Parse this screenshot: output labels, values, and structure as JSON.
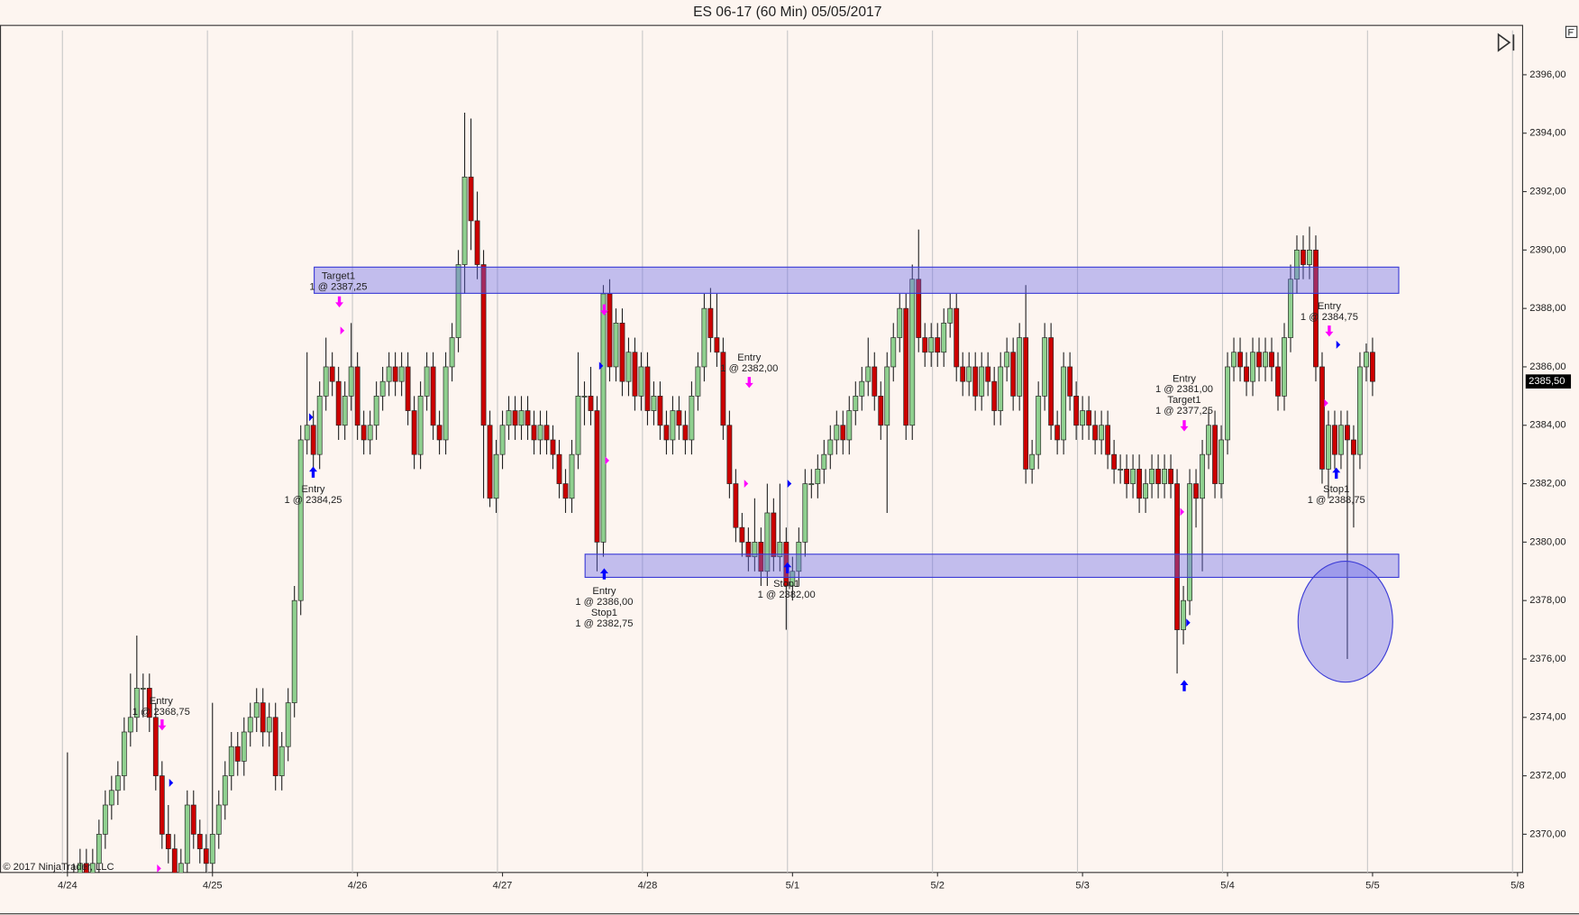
{
  "chart_data": {
    "type": "candlestick",
    "title": "ES 06-17 (60 Min)  05/05/2017",
    "copyright": "© 2017 NinjaTrader, LLC",
    "up_color": "#8fd08f",
    "down_color": "#cc0000",
    "outline_color": "#222222",
    "marker_colors": {
      "buy": "#0000ff",
      "sell": "#ff00ff"
    },
    "xlim": [
      -10.7,
      230.8
    ],
    "xticks": [
      {
        "value": 0,
        "label": "4/24"
      },
      {
        "value": 23,
        "label": "4/25"
      },
      {
        "value": 46,
        "label": "4/26"
      },
      {
        "value": 69,
        "label": "4/27"
      },
      {
        "value": 92,
        "label": "4/28"
      },
      {
        "value": 115,
        "label": "5/1"
      },
      {
        "value": 138,
        "label": "5/2"
      },
      {
        "value": 161,
        "label": "5/3"
      },
      {
        "value": 184,
        "label": "5/4"
      },
      {
        "value": 207,
        "label": "5/5"
      },
      {
        "value": 230,
        "label": "5/8"
      }
    ],
    "ylim": [
      2368.69,
      2397.69
    ],
    "yticks": [
      {
        "value": 2370,
        "label": "2370,00"
      },
      {
        "value": 2372,
        "label": "2372,00"
      },
      {
        "value": 2374,
        "label": "2374,00"
      },
      {
        "value": 2376,
        "label": "2376,00"
      },
      {
        "value": 2378,
        "label": "2378,00"
      },
      {
        "value": 2380,
        "label": "2380,00"
      },
      {
        "value": 2382,
        "label": "2382,00"
      },
      {
        "value": 2384,
        "label": "2384,00"
      },
      {
        "value": 2386,
        "label": "2386,00"
      },
      {
        "value": 2388,
        "label": "2388,00"
      },
      {
        "value": 2390,
        "label": "2390,00"
      },
      {
        "value": 2392,
        "label": "2392,00"
      },
      {
        "value": 2394,
        "label": "2394,00"
      },
      {
        "value": 2396,
        "label": "2396,00"
      }
    ],
    "last_price": {
      "value": 2385.5,
      "label": "2385,50"
    },
    "annotations": [
      [
        "Target1",
        "1 @ 2387,25"
      ],
      [
        "Entry",
        "1 @ 2384,25"
      ],
      [
        "Entry",
        "1 @ 2368,75"
      ],
      [
        "Entry",
        "1 @ 2386,00",
        "Stop1",
        "1 @ 2382,75"
      ],
      [
        "Entry",
        "1 @ 2382,00"
      ],
      [
        "Stop1",
        "1 @ 2382,00"
      ],
      [
        "Entry",
        "1 @ 2381,00",
        "Target1",
        "1 @ 2377,25"
      ],
      [
        "Entry",
        "1 @ 2384,75"
      ],
      [
        "Stop1",
        "1 @ 2388,75"
      ]
    ],
    "ohlc": [
      [
        2367.5,
        2372.8,
        2367,
        2368
      ],
      [
        2368,
        2369,
        2367.5,
        2368.5
      ],
      [
        2368.5,
        2369.5,
        2368,
        2369
      ],
      [
        2369,
        2369.5,
        2368,
        2368.5
      ],
      [
        2368.5,
        2369.5,
        2368,
        2369
      ],
      [
        2369,
        2370.5,
        2368.5,
        2370
      ],
      [
        2370,
        2371.5,
        2369.5,
        2371
      ],
      [
        2371,
        2372,
        2370.5,
        2371.5
      ],
      [
        2371.5,
        2372.5,
        2371,
        2372
      ],
      [
        2372,
        2374,
        2371.5,
        2373.5
      ],
      [
        2373.5,
        2375.5,
        2373,
        2374
      ],
      [
        2374,
        2376.8,
        2373.5,
        2375
      ],
      [
        2375,
        2375.5,
        2374,
        2375
      ],
      [
        2375,
        2375.5,
        2373.5,
        2374
      ],
      [
        2374,
        2374.5,
        2371.5,
        2372
      ],
      [
        2372,
        2372.5,
        2369.5,
        2370
      ],
      [
        2370,
        2371,
        2369,
        2369.5
      ],
      [
        2369.5,
        2370,
        2368,
        2368.5
      ],
      [
        2368.5,
        2369.5,
        2368,
        2369
      ],
      [
        2369,
        2371.5,
        2368.5,
        2371
      ],
      [
        2371,
        2371.5,
        2369.5,
        2370
      ],
      [
        2370,
        2370.5,
        2369,
        2369.5
      ],
      [
        2369.5,
        2370,
        2368.5,
        2369
      ],
      [
        2369,
        2374.5,
        2368.5,
        2370
      ],
      [
        2370,
        2371.5,
        2369.5,
        2371
      ],
      [
        2371,
        2372.5,
        2370.5,
        2372
      ],
      [
        2372,
        2373.5,
        2371.5,
        2373
      ],
      [
        2373,
        2373.5,
        2372,
        2372.5
      ],
      [
        2372.5,
        2374,
        2372,
        2373.5
      ],
      [
        2373.5,
        2374.5,
        2373,
        2374
      ],
      [
        2374,
        2375,
        2373.5,
        2374.5
      ],
      [
        2374.5,
        2375,
        2373,
        2373.5
      ],
      [
        2373.5,
        2374.5,
        2373,
        2374
      ],
      [
        2374,
        2374.5,
        2371.5,
        2372
      ],
      [
        2372,
        2373.5,
        2371.5,
        2373
      ],
      [
        2373,
        2375,
        2372.5,
        2374.5
      ],
      [
        2374.5,
        2378.5,
        2374,
        2378
      ],
      [
        2378,
        2384,
        2377.5,
        2383.5
      ],
      [
        2383.5,
        2386.5,
        2383,
        2384
      ],
      [
        2384,
        2384.5,
        2382.5,
        2383
      ],
      [
        2383,
        2385.5,
        2382.5,
        2385
      ],
      [
        2385,
        2387,
        2384.5,
        2386
      ],
      [
        2386,
        2386.5,
        2385,
        2385.5
      ],
      [
        2385.5,
        2386,
        2383.5,
        2384
      ],
      [
        2384,
        2385.5,
        2383.5,
        2385
      ],
      [
        2385,
        2387.5,
        2384.5,
        2386
      ],
      [
        2386,
        2386.5,
        2383.5,
        2384
      ],
      [
        2384,
        2384.5,
        2383,
        2383.5
      ],
      [
        2383.5,
        2384.5,
        2383,
        2384
      ],
      [
        2384,
        2385.5,
        2383.5,
        2385
      ],
      [
        2385,
        2386,
        2384.5,
        2385.5
      ],
      [
        2385.5,
        2386.5,
        2385,
        2386
      ],
      [
        2386,
        2386.5,
        2385,
        2385.5
      ],
      [
        2385.5,
        2386.5,
        2385,
        2386
      ],
      [
        2386,
        2386.5,
        2384,
        2384.5
      ],
      [
        2384.5,
        2385,
        2382.5,
        2383
      ],
      [
        2383,
        2385.5,
        2382.5,
        2385
      ],
      [
        2385,
        2386.5,
        2384.5,
        2386
      ],
      [
        2386,
        2386.5,
        2383.5,
        2384
      ],
      [
        2384,
        2384.5,
        2383,
        2383.5
      ],
      [
        2383.5,
        2386.5,
        2383,
        2386
      ],
      [
        2386,
        2387.5,
        2385.5,
        2387
      ],
      [
        2387,
        2390,
        2386.5,
        2389.5
      ],
      [
        2389.5,
        2394.7,
        2388.5,
        2392.5
      ],
      [
        2392.5,
        2394.5,
        2390,
        2391
      ],
      [
        2391,
        2392,
        2389,
        2389.5
      ],
      [
        2389.5,
        2390,
        2381.5,
        2384
      ],
      [
        2384,
        2384.5,
        2381.2,
        2381.5
      ],
      [
        2381.5,
        2383.5,
        2381,
        2383
      ],
      [
        2383,
        2384.5,
        2382.5,
        2384
      ],
      [
        2384,
        2385,
        2383.5,
        2384.5
      ],
      [
        2384.5,
        2385,
        2383.5,
        2384
      ],
      [
        2384,
        2385,
        2383.5,
        2384.5
      ],
      [
        2384.5,
        2385,
        2383.5,
        2384
      ],
      [
        2384,
        2384.5,
        2383,
        2383.5
      ],
      [
        2383.5,
        2384.5,
        2383,
        2384
      ],
      [
        2384,
        2384.5,
        2383,
        2383.5
      ],
      [
        2383.5,
        2384,
        2382.5,
        2383
      ],
      [
        2383,
        2383.5,
        2381.5,
        2382
      ],
      [
        2382,
        2382.5,
        2381,
        2381.5
      ],
      [
        2381.5,
        2383.5,
        2381,
        2383
      ],
      [
        2383,
        2386.5,
        2382.5,
        2385
      ],
      [
        2385,
        2385.5,
        2384,
        2385
      ],
      [
        2385,
        2386,
        2384,
        2384.5
      ],
      [
        2384.5,
        2385,
        2379,
        2380
      ],
      [
        2380,
        2388.8,
        2379.5,
        2388.5
      ],
      [
        2388.5,
        2389,
        2385.5,
        2386
      ],
      [
        2386,
        2388,
        2385.5,
        2387.5
      ],
      [
        2387.5,
        2388,
        2385,
        2385.5
      ],
      [
        2385.5,
        2387,
        2385,
        2386.5
      ],
      [
        2386.5,
        2387,
        2384.5,
        2385
      ],
      [
        2385,
        2386.5,
        2384.5,
        2386
      ],
      [
        2386,
        2386.5,
        2384,
        2384.5
      ],
      [
        2384.5,
        2385.5,
        2384,
        2385
      ],
      [
        2385,
        2385.5,
        2383.5,
        2384
      ],
      [
        2384,
        2384.5,
        2383,
        2383.5
      ],
      [
        2383.5,
        2385,
        2383,
        2384.5
      ],
      [
        2384.5,
        2385,
        2383.5,
        2384
      ],
      [
        2384,
        2384.5,
        2383,
        2383.5
      ],
      [
        2383.5,
        2385.5,
        2383,
        2385
      ],
      [
        2385,
        2386.5,
        2384.5,
        2386
      ],
      [
        2386,
        2388.5,
        2385.5,
        2388
      ],
      [
        2388,
        2388.7,
        2386.5,
        2387
      ],
      [
        2387,
        2388.5,
        2386,
        2386.5
      ],
      [
        2386.5,
        2387,
        2383.5,
        2384
      ],
      [
        2384,
        2384.5,
        2381.5,
        2382
      ],
      [
        2382,
        2382.5,
        2380,
        2380.5
      ],
      [
        2380.5,
        2381,
        2379.5,
        2380
      ],
      [
        2380,
        2380.5,
        2379,
        2379.5
      ],
      [
        2379.5,
        2381.5,
        2379,
        2380
      ],
      [
        2380,
        2380.5,
        2378.5,
        2379
      ],
      [
        2379,
        2382,
        2378.5,
        2381
      ],
      [
        2381,
        2381.5,
        2379,
        2379.5
      ],
      [
        2379.5,
        2382,
        2379,
        2380
      ],
      [
        2380,
        2380.5,
        2377,
        2378.5
      ],
      [
        2378.5,
        2379.5,
        2378,
        2379
      ],
      [
        2379,
        2380.5,
        2378.5,
        2380
      ],
      [
        2380,
        2382.5,
        2379.5,
        2382
      ],
      [
        2382,
        2382.5,
        2381.5,
        2382
      ],
      [
        2382,
        2383,
        2381.5,
        2382.5
      ],
      [
        2382.5,
        2383.5,
        2382,
        2383
      ],
      [
        2383,
        2384,
        2382.5,
        2383.5
      ],
      [
        2383.5,
        2384.5,
        2383,
        2384
      ],
      [
        2384,
        2384.5,
        2383,
        2383.5
      ],
      [
        2383.5,
        2385,
        2383,
        2384.5
      ],
      [
        2384.5,
        2385.5,
        2384,
        2385
      ],
      [
        2385,
        2386,
        2384.5,
        2385.5
      ],
      [
        2385.5,
        2387,
        2385,
        2386
      ],
      [
        2386,
        2386.5,
        2384.5,
        2385
      ],
      [
        2385,
        2385.5,
        2383.5,
        2384
      ],
      [
        2384,
        2386.5,
        2381,
        2386
      ],
      [
        2386,
        2387.5,
        2385.5,
        2387
      ],
      [
        2387,
        2388.5,
        2386.5,
        2388
      ],
      [
        2388,
        2388.5,
        2383.5,
        2384
      ],
      [
        2384,
        2389.5,
        2383.5,
        2389
      ],
      [
        2389,
        2390.7,
        2386.5,
        2387
      ],
      [
        2387,
        2387.5,
        2386,
        2386.5
      ],
      [
        2386.5,
        2387.5,
        2386,
        2387
      ],
      [
        2387,
        2387.5,
        2386,
        2386.5
      ],
      [
        2386.5,
        2388,
        2386,
        2387.5
      ],
      [
        2387.5,
        2388.5,
        2387,
        2388
      ],
      [
        2388,
        2388.5,
        2385.5,
        2386
      ],
      [
        2386,
        2386.5,
        2385,
        2385.5
      ],
      [
        2385.5,
        2386.5,
        2385,
        2386
      ],
      [
        2386,
        2386.5,
        2384.5,
        2385
      ],
      [
        2385,
        2386.5,
        2384.5,
        2386
      ],
      [
        2386,
        2386.5,
        2385,
        2385.5
      ],
      [
        2385.5,
        2386,
        2384,
        2384.5
      ],
      [
        2384.5,
        2386.5,
        2384,
        2386
      ],
      [
        2386,
        2387,
        2385.5,
        2386.5
      ],
      [
        2386.5,
        2387,
        2384.5,
        2385
      ],
      [
        2385,
        2387.5,
        2384.5,
        2387
      ],
      [
        2387,
        2388.8,
        2382,
        2382.5
      ],
      [
        2382.5,
        2383.5,
        2382,
        2383
      ],
      [
        2383,
        2385.5,
        2382.5,
        2385
      ],
      [
        2385,
        2387.5,
        2384.5,
        2387
      ],
      [
        2387,
        2387.5,
        2383.5,
        2384
      ],
      [
        2384,
        2384.5,
        2383,
        2383.5
      ],
      [
        2383.5,
        2386.5,
        2383,
        2386
      ],
      [
        2386,
        2386.5,
        2384.5,
        2385
      ],
      [
        2385,
        2385.5,
        2383.5,
        2384
      ],
      [
        2384,
        2385,
        2383.5,
        2384.5
      ],
      [
        2384.5,
        2385,
        2383.5,
        2384
      ],
      [
        2384,
        2384.5,
        2383,
        2383.5
      ],
      [
        2383.5,
        2384.5,
        2383,
        2384
      ],
      [
        2384,
        2384.5,
        2382.5,
        2383
      ],
      [
        2383,
        2383.5,
        2382,
        2382.5
      ],
      [
        2382.5,
        2383,
        2382,
        2382.5
      ],
      [
        2382.5,
        2383,
        2381.5,
        2382
      ],
      [
        2382,
        2383,
        2381.5,
        2382.5
      ],
      [
        2382.5,
        2383,
        2381,
        2381.5
      ],
      [
        2381.5,
        2382.5,
        2381,
        2382
      ],
      [
        2382,
        2383,
        2381.5,
        2382.5
      ],
      [
        2382.5,
        2383,
        2381.5,
        2382
      ],
      [
        2382,
        2383,
        2381.5,
        2382.5
      ],
      [
        2382.5,
        2383,
        2381.5,
        2382
      ],
      [
        2382,
        2382.5,
        2375.5,
        2377
      ],
      [
        2377,
        2378.5,
        2376.5,
        2378
      ],
      [
        2378,
        2382.5,
        2377.5,
        2382
      ],
      [
        2382,
        2382.5,
        2380.5,
        2381.5
      ],
      [
        2381.5,
        2383.5,
        2379,
        2383
      ],
      [
        2383,
        2384.5,
        2382.5,
        2384
      ],
      [
        2384,
        2384.5,
        2381.5,
        2382
      ],
      [
        2382,
        2384,
        2381.5,
        2383.5
      ],
      [
        2383.5,
        2386.5,
        2383,
        2386
      ],
      [
        2386,
        2387,
        2385.5,
        2386.5
      ],
      [
        2386.5,
        2387,
        2385.5,
        2386
      ],
      [
        2386,
        2386.5,
        2385,
        2385.5
      ],
      [
        2385.5,
        2387,
        2385,
        2386.5
      ],
      [
        2386.5,
        2387,
        2385.5,
        2386
      ],
      [
        2386,
        2387,
        2385.5,
        2386.5
      ],
      [
        2386.5,
        2387,
        2385.5,
        2386
      ],
      [
        2386,
        2386.5,
        2384.5,
        2385
      ],
      [
        2385,
        2387.5,
        2384.5,
        2387
      ],
      [
        2387,
        2389.5,
        2386.5,
        2389
      ],
      [
        2389,
        2390.5,
        2388.5,
        2390
      ],
      [
        2390,
        2390.5,
        2389,
        2389.5
      ],
      [
        2389.5,
        2390.8,
        2389,
        2390
      ],
      [
        2390,
        2390.5,
        2385.5,
        2386
      ],
      [
        2386,
        2386.5,
        2382,
        2382.5
      ],
      [
        2382.5,
        2384.5,
        2381.5,
        2384
      ],
      [
        2384,
        2384.5,
        2382.5,
        2383
      ],
      [
        2383,
        2384.5,
        2382.5,
        2384
      ],
      [
        2384,
        2384.5,
        2376,
        2383.5
      ],
      [
        2383.5,
        2384,
        2380.5,
        2383
      ],
      [
        2383,
        2386.5,
        2382.5,
        2386
      ],
      [
        2386,
        2386.8,
        2385.5,
        2386.5
      ],
      [
        2386.5,
        2387,
        2385,
        2385.5
      ]
    ]
  }
}
